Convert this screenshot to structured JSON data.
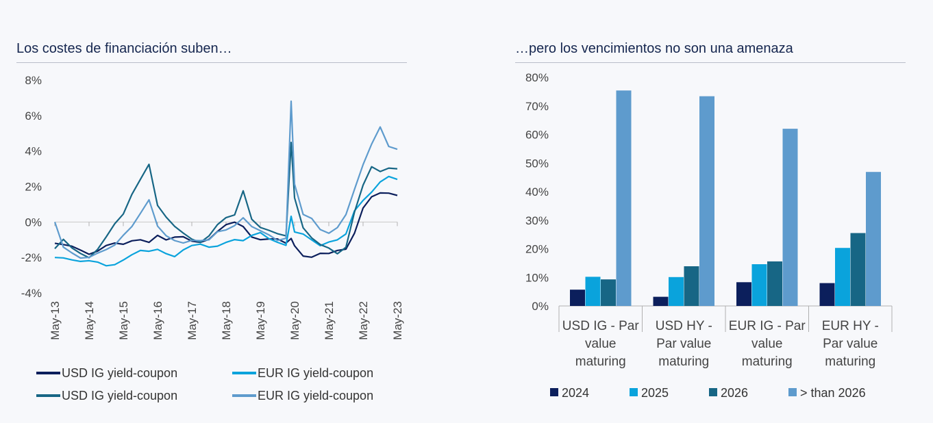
{
  "left": {
    "title": "Los costes de financiación suben…"
  },
  "right": {
    "title": "…pero los vencimientos no son una amenaza"
  },
  "chart_data": [
    {
      "type": "line",
      "title": "Los costes de financiación suben…",
      "ylabel": "",
      "xlabel": "",
      "ylim": [
        -4,
        8
      ],
      "yticks": [
        -4,
        -2,
        0,
        2,
        4,
        6,
        8
      ],
      "ytick_labels": [
        "-4%",
        "-2%",
        "0%",
        "2%",
        "4%",
        "6%",
        "8%"
      ],
      "xticks": [
        "May-13",
        "May-14",
        "May-15",
        "May-16",
        "May-17",
        "May-18",
        "May-19",
        "May-20",
        "May-21",
        "May-22",
        "May-23"
      ],
      "x": [
        2013.35,
        2013.6,
        2013.85,
        2014.1,
        2014.35,
        2014.6,
        2014.85,
        2015.1,
        2015.35,
        2015.6,
        2015.85,
        2016.1,
        2016.35,
        2016.6,
        2016.85,
        2017.1,
        2017.35,
        2017.6,
        2017.85,
        2018.1,
        2018.35,
        2018.6,
        2018.85,
        2019.1,
        2019.35,
        2019.6,
        2019.85,
        2020.1,
        2020.25,
        2020.35,
        2020.6,
        2020.85,
        2021.1,
        2021.35,
        2021.6,
        2021.85,
        2022.1,
        2022.35,
        2022.6,
        2022.85,
        2023.1,
        2023.35
      ],
      "series": [
        {
          "name": "USD IG yield-coupon",
          "color": "#0c1f5c",
          "values": [
            -1.2,
            -1.4,
            -1.5,
            -1.6,
            -1.7,
            -1.5,
            -1.3,
            -1.3,
            -1.4,
            -1.1,
            -0.9,
            -1.0,
            -0.7,
            -1.1,
            -1.0,
            -0.9,
            -1.0,
            -1.0,
            -0.9,
            -0.6,
            -0.3,
            -0.1,
            -0.2,
            -0.7,
            -0.9,
            -1.0,
            -1.1,
            -1.3,
            -0.9,
            -1.2,
            -1.8,
            -2.0,
            -1.9,
            -1.9,
            -1.6,
            -1.4,
            -0.5,
            0.8,
            1.3,
            1.5,
            1.6,
            1.5
          ]
        },
        {
          "name": "EUR IG yield-coupon",
          "color": "#0aa3dc",
          "values": [
            -2.0,
            -1.9,
            -2.0,
            -2.2,
            -2.3,
            -2.4,
            -2.5,
            -2.3,
            -2.0,
            -1.8,
            -1.7,
            -1.8,
            -1.6,
            -1.7,
            -1.8,
            -1.5,
            -1.4,
            -1.4,
            -1.5,
            -1.3,
            -1.0,
            -0.9,
            -1.1,
            -0.9,
            -0.7,
            -0.9,
            -1.0,
            -1.2,
            0.3,
            -0.7,
            -0.8,
            -1.0,
            -1.2,
            -1.0,
            -1.0,
            -0.8,
            0.5,
            1.2,
            1.8,
            2.4,
            2.6,
            2.4
          ]
        },
        {
          "name": "USD IG yield-coupon",
          "color": "#176685",
          "values": [
            -1.5,
            -1.1,
            -1.6,
            -1.8,
            -1.9,
            -1.4,
            -0.8,
            -0.2,
            0.3,
            1.5,
            2.5,
            3.4,
            1.0,
            0.2,
            -0.4,
            -0.7,
            -0.9,
            -1.0,
            -0.7,
            -0.2,
            0.1,
            0.3,
            1.8,
            0.3,
            -0.2,
            -0.5,
            -0.8,
            -0.9,
            4.5,
            1.5,
            -0.2,
            -0.9,
            -1.4,
            -1.6,
            -1.8,
            -1.3,
            0.7,
            2.1,
            3.0,
            2.7,
            3.0,
            3.0
          ]
        },
        {
          "name": "EUR IG yield-coupon",
          "color": "#5e9bcd",
          "values": [
            0.0,
            -1.3,
            -1.6,
            -2.0,
            -2.1,
            -1.9,
            -1.6,
            -1.2,
            -0.6,
            -0.2,
            0.4,
            1.1,
            -0.3,
            -0.7,
            -0.9,
            -1.1,
            -1.1,
            -1.2,
            -1.1,
            -0.5,
            -0.3,
            -0.1,
            0.2,
            -0.4,
            -0.6,
            -0.7,
            -0.9,
            -0.8,
            6.8,
            2.0,
            0.3,
            0.2,
            -0.3,
            -0.5,
            -0.3,
            0.3,
            1.7,
            3.2,
            4.5,
            5.5,
            4.3,
            4.1
          ]
        }
      ]
    },
    {
      "type": "bar",
      "title": "…pero los vencimientos no son una amenaza",
      "ylim": [
        0,
        80
      ],
      "yticks": [
        0,
        10,
        20,
        30,
        40,
        50,
        60,
        70,
        80
      ],
      "ytick_labels": [
        "0%",
        "10%",
        "20%",
        "30%",
        "40%",
        "50%",
        "60%",
        "70%",
        "80%"
      ],
      "categories": [
        [
          "USD IG - Par",
          "value",
          "maturing"
        ],
        [
          "USD HY -",
          "Par value",
          "maturing"
        ],
        [
          "EUR IG - Par",
          "value",
          "maturing"
        ],
        [
          "EUR HY -",
          "Par value",
          "maturing"
        ]
      ],
      "series": [
        {
          "name": "2024",
          "color": "#0c1f5c",
          "values": [
            5.7,
            3.2,
            8.3,
            8.0
          ]
        },
        {
          "name": "2025",
          "color": "#0aa3dc",
          "values": [
            10.2,
            10.1,
            14.6,
            20.3
          ]
        },
        {
          "name": "2026",
          "color": "#176685",
          "values": [
            9.3,
            13.9,
            15.6,
            25.5
          ]
        },
        {
          "name": "> than 2026",
          "color": "#5e9bcd",
          "values": [
            75.4,
            73.4,
            62.0,
            46.9
          ]
        }
      ]
    }
  ]
}
